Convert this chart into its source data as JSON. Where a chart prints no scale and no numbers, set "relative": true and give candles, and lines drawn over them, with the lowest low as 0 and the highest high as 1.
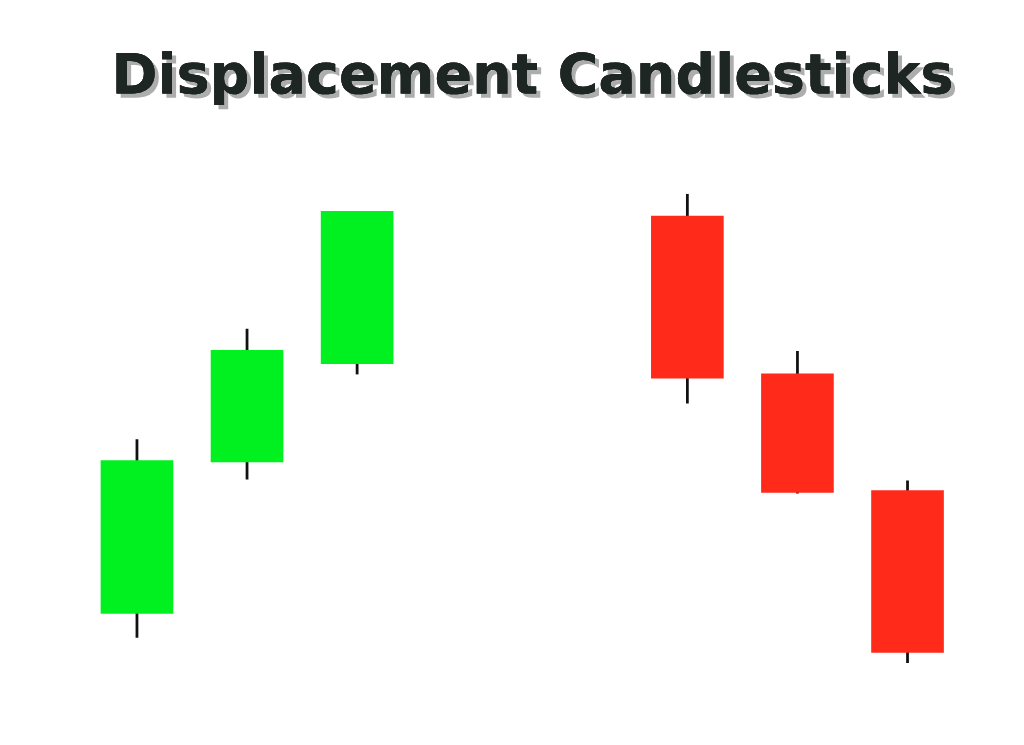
{
  "chart_data": {
    "type": "candlestick",
    "title": "Displacement Candlesticks",
    "relative": true,
    "categories": [
      null,
      null,
      null,
      null,
      null,
      null,
      null,
      null
    ],
    "ohlc": [
      [
        0.105,
        0.477,
        0.054,
        0.432
      ],
      [
        0.428,
        0.712,
        0.391,
        0.667
      ],
      [
        0.637,
        0.963,
        0.615,
        0.963
      ],
      null,
      null,
      [
        0.953,
        1,
        0.553,
        0.606
      ],
      [
        0.617,
        0.665,
        0.361,
        0.363
      ],
      [
        0.368,
        0.389,
        0,
        0.022
      ]
    ],
    "colors": [
      "#00f020",
      "#00f020",
      "#00f020",
      null,
      null,
      "#ff2a1a",
      "#ff2a1a",
      "#ff2a1a"
    ]
  }
}
